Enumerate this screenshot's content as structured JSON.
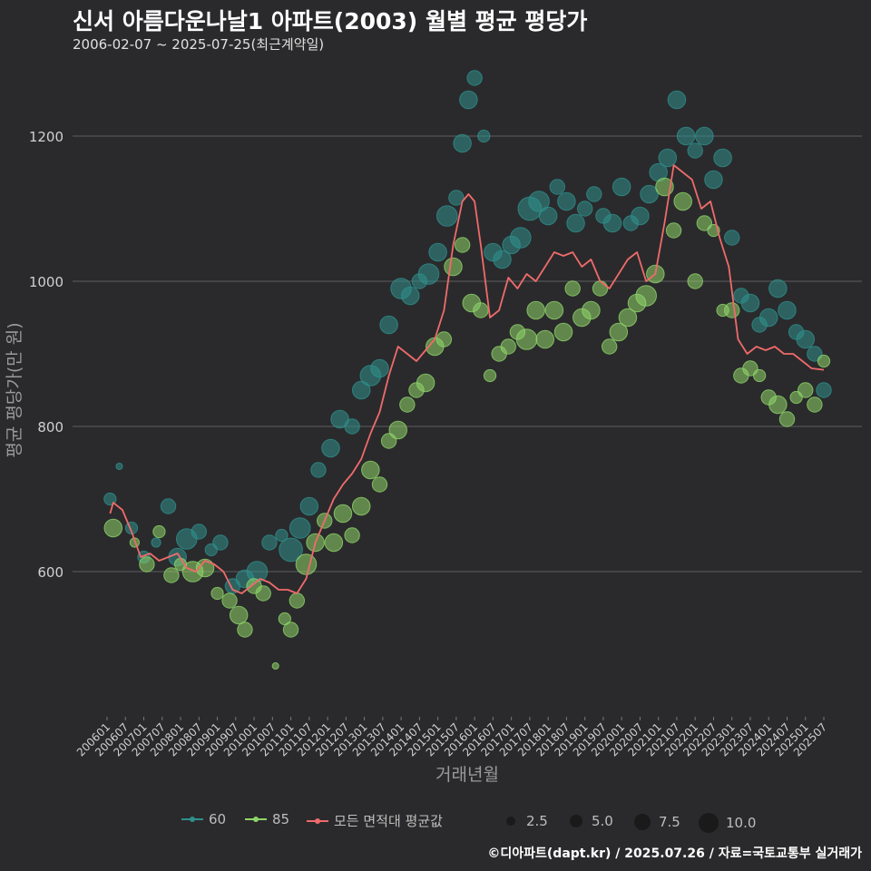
{
  "title": "신서 아름다운나날1 아파트(2003) 월별 평균 평당가",
  "subtitle": "2006-02-07 ~ 2025-07-25(최근계약일)",
  "footer": "©디아파트(dapt.kr) / 2025.07.26 / 자료=국토교통부 실거래가",
  "colors": {
    "bg": "#2a2a2c",
    "grid": "#555555",
    "s60": "#2f8f8c",
    "s85": "#8fd46a",
    "avg": "#ef6b6b",
    "text": "#d0d0d0"
  },
  "legend": {
    "s60": "60",
    "s85": "85",
    "avg": "모든 면적대 평균값",
    "sizes": [
      "2.5",
      "5.0",
      "7.5",
      "10.0"
    ]
  },
  "chart_data": {
    "type": "scatter",
    "xlabel": "거래년월",
    "ylabel": "평균 평당가(만 원)",
    "ylim": [
      400,
      1300
    ],
    "yticks": [
      600,
      800,
      1000,
      1200
    ],
    "xticks": [
      "200601",
      "200607",
      "200701",
      "200707",
      "200801",
      "200807",
      "200901",
      "200907",
      "201001",
      "201007",
      "201101",
      "201107",
      "201201",
      "201207",
      "201301",
      "201307",
      "201401",
      "201407",
      "201501",
      "201507",
      "201601",
      "201607",
      "201701",
      "201707",
      "201801",
      "201807",
      "201901",
      "201907",
      "202001",
      "202007",
      "202101",
      "202107",
      "202201",
      "202207",
      "202301",
      "202307",
      "202401",
      "202407",
      "202501",
      "202507"
    ],
    "x_range": [
      "2006-01",
      "2025-07"
    ],
    "series": [
      {
        "name": "60",
        "points": [
          [
            "2006-02",
            700,
            3
          ],
          [
            "2006-05",
            745,
            1
          ],
          [
            "2006-09",
            660,
            3
          ],
          [
            "2007-01",
            620,
            3
          ],
          [
            "2007-05",
            640,
            2
          ],
          [
            "2007-09",
            690,
            4
          ],
          [
            "2007-12",
            620,
            5
          ],
          [
            "2008-03",
            645,
            6
          ],
          [
            "2008-07",
            655,
            4
          ],
          [
            "2008-11",
            630,
            3
          ],
          [
            "2009-02",
            640,
            4
          ],
          [
            "2009-06",
            580,
            4
          ],
          [
            "2009-10",
            590,
            5
          ],
          [
            "2010-02",
            600,
            6
          ],
          [
            "2010-06",
            640,
            4
          ],
          [
            "2010-10",
            650,
            3
          ],
          [
            "2011-01",
            630,
            7
          ],
          [
            "2011-04",
            660,
            6
          ],
          [
            "2011-07",
            690,
            5
          ],
          [
            "2011-10",
            740,
            4
          ],
          [
            "2012-02",
            770,
            5
          ],
          [
            "2012-05",
            810,
            5
          ],
          [
            "2012-09",
            800,
            4
          ],
          [
            "2012-12",
            850,
            5
          ],
          [
            "2013-03",
            870,
            6
          ],
          [
            "2013-06",
            880,
            5
          ],
          [
            "2013-09",
            940,
            5
          ],
          [
            "2014-01",
            990,
            6
          ],
          [
            "2014-04",
            980,
            5
          ],
          [
            "2014-07",
            1000,
            4
          ],
          [
            "2014-10",
            1010,
            6
          ],
          [
            "2015-01",
            1040,
            5
          ],
          [
            "2015-04",
            1090,
            6
          ],
          [
            "2015-07",
            1115,
            4
          ],
          [
            "2015-09",
            1190,
            5
          ],
          [
            "2015-11",
            1250,
            5
          ],
          [
            "2016-01",
            1280,
            4
          ],
          [
            "2016-04",
            1200,
            3
          ],
          [
            "2016-07",
            1040,
            5
          ],
          [
            "2016-10",
            1030,
            5
          ],
          [
            "2017-01",
            1050,
            5
          ],
          [
            "2017-04",
            1060,
            6
          ],
          [
            "2017-07",
            1100,
            7
          ],
          [
            "2017-10",
            1110,
            6
          ],
          [
            "2018-01",
            1090,
            5
          ],
          [
            "2018-04",
            1130,
            4
          ],
          [
            "2018-07",
            1110,
            5
          ],
          [
            "2018-10",
            1080,
            5
          ],
          [
            "2019-01",
            1100,
            4
          ],
          [
            "2019-04",
            1120,
            4
          ],
          [
            "2019-07",
            1090,
            4
          ],
          [
            "2019-10",
            1080,
            5
          ],
          [
            "2020-01",
            1130,
            5
          ],
          [
            "2020-04",
            1080,
            4
          ],
          [
            "2020-07",
            1090,
            5
          ],
          [
            "2020-10",
            1120,
            5
          ],
          [
            "2021-01",
            1150,
            5
          ],
          [
            "2021-04",
            1170,
            5
          ],
          [
            "2021-07",
            1250,
            5
          ],
          [
            "2021-10",
            1200,
            5
          ],
          [
            "2022-01",
            1180,
            4
          ],
          [
            "2022-04",
            1200,
            5
          ],
          [
            "2022-07",
            1140,
            5
          ],
          [
            "2022-10",
            1170,
            5
          ],
          [
            "2023-01",
            1060,
            4
          ],
          [
            "2023-04",
            980,
            4
          ],
          [
            "2023-07",
            970,
            5
          ],
          [
            "2023-10",
            940,
            4
          ],
          [
            "2024-01",
            950,
            5
          ],
          [
            "2024-04",
            990,
            5
          ],
          [
            "2024-07",
            960,
            5
          ],
          [
            "2024-10",
            930,
            4
          ],
          [
            "2025-01",
            920,
            5
          ],
          [
            "2025-04",
            900,
            4
          ],
          [
            "2025-07",
            850,
            4
          ]
        ]
      },
      {
        "name": "85",
        "points": [
          [
            "2006-03",
            660,
            5
          ],
          [
            "2006-10",
            640,
            2
          ],
          [
            "2007-02",
            610,
            4
          ],
          [
            "2007-06",
            655,
            3
          ],
          [
            "2007-10",
            595,
            4
          ],
          [
            "2008-01",
            610,
            3
          ],
          [
            "2008-05",
            600,
            6
          ],
          [
            "2008-09",
            605,
            5
          ],
          [
            "2009-01",
            570,
            3
          ],
          [
            "2009-05",
            560,
            4
          ],
          [
            "2009-08",
            540,
            5
          ],
          [
            "2009-10",
            520,
            4
          ],
          [
            "2010-01",
            580,
            4
          ],
          [
            "2010-04",
            570,
            4
          ],
          [
            "2010-08",
            470,
            1
          ],
          [
            "2010-11",
            535,
            3
          ],
          [
            "2011-01",
            520,
            4
          ],
          [
            "2011-03",
            560,
            4
          ],
          [
            "2011-06",
            610,
            6
          ],
          [
            "2011-09",
            640,
            5
          ],
          [
            "2011-12",
            670,
            4
          ],
          [
            "2012-03",
            640,
            5
          ],
          [
            "2012-06",
            680,
            5
          ],
          [
            "2012-09",
            650,
            4
          ],
          [
            "2012-12",
            690,
            5
          ],
          [
            "2013-03",
            740,
            5
          ],
          [
            "2013-06",
            720,
            4
          ],
          [
            "2013-09",
            780,
            4
          ],
          [
            "2013-12",
            795,
            5
          ],
          [
            "2014-03",
            830,
            4
          ],
          [
            "2014-06",
            850,
            4
          ],
          [
            "2014-09",
            860,
            5
          ],
          [
            "2014-12",
            910,
            5
          ],
          [
            "2015-03",
            920,
            4
          ],
          [
            "2015-06",
            1020,
            5
          ],
          [
            "2015-09",
            1050,
            4
          ],
          [
            "2015-12",
            970,
            5
          ],
          [
            "2016-03",
            960,
            4
          ],
          [
            "2016-06",
            870,
            3
          ],
          [
            "2016-09",
            900,
            4
          ],
          [
            "2016-12",
            910,
            4
          ],
          [
            "2017-03",
            930,
            4
          ],
          [
            "2017-06",
            920,
            6
          ],
          [
            "2017-09",
            960,
            5
          ],
          [
            "2017-12",
            920,
            5
          ],
          [
            "2018-03",
            960,
            5
          ],
          [
            "2018-06",
            930,
            5
          ],
          [
            "2018-09",
            990,
            4
          ],
          [
            "2018-12",
            950,
            5
          ],
          [
            "2019-03",
            960,
            5
          ],
          [
            "2019-06",
            990,
            4
          ],
          [
            "2019-09",
            910,
            4
          ],
          [
            "2019-12",
            930,
            5
          ],
          [
            "2020-03",
            950,
            5
          ],
          [
            "2020-06",
            970,
            5
          ],
          [
            "2020-09",
            980,
            6
          ],
          [
            "2020-12",
            1010,
            5
          ],
          [
            "2021-03",
            1130,
            5
          ],
          [
            "2021-06",
            1070,
            4
          ],
          [
            "2021-09",
            1110,
            5
          ],
          [
            "2022-01",
            1000,
            4
          ],
          [
            "2022-04",
            1080,
            4
          ],
          [
            "2022-07",
            1070,
            3
          ],
          [
            "2022-10",
            960,
            3
          ],
          [
            "2023-01",
            960,
            4
          ],
          [
            "2023-04",
            870,
            4
          ],
          [
            "2023-07",
            880,
            4
          ],
          [
            "2023-10",
            870,
            3
          ],
          [
            "2024-01",
            840,
            4
          ],
          [
            "2024-04",
            830,
            5
          ],
          [
            "2024-07",
            810,
            4
          ],
          [
            "2024-10",
            840,
            3
          ],
          [
            "2025-01",
            850,
            4
          ],
          [
            "2025-04",
            830,
            4
          ],
          [
            "2025-07",
            890,
            3
          ]
        ]
      },
      {
        "name": "모든 면적대 평균값",
        "points": [
          [
            "2006-02",
            680
          ],
          [
            "2006-03",
            695
          ],
          [
            "2006-06",
            685
          ],
          [
            "2006-09",
            655
          ],
          [
            "2006-12",
            620
          ],
          [
            "2007-03",
            625
          ],
          [
            "2007-06",
            615
          ],
          [
            "2007-09",
            620
          ],
          [
            "2007-12",
            625
          ],
          [
            "2008-03",
            605
          ],
          [
            "2008-06",
            600
          ],
          [
            "2008-09",
            615
          ],
          [
            "2008-12",
            610
          ],
          [
            "2009-03",
            600
          ],
          [
            "2009-06",
            575
          ],
          [
            "2009-09",
            570
          ],
          [
            "2009-12",
            580
          ],
          [
            "2010-03",
            590
          ],
          [
            "2010-06",
            585
          ],
          [
            "2010-09",
            575
          ],
          [
            "2010-12",
            575
          ],
          [
            "2011-03",
            570
          ],
          [
            "2011-06",
            590
          ],
          [
            "2011-09",
            640
          ],
          [
            "2011-12",
            670
          ],
          [
            "2012-03",
            700
          ],
          [
            "2012-06",
            720
          ],
          [
            "2012-09",
            735
          ],
          [
            "2012-12",
            755
          ],
          [
            "2013-03",
            790
          ],
          [
            "2013-06",
            820
          ],
          [
            "2013-09",
            870
          ],
          [
            "2013-12",
            910
          ],
          [
            "2014-03",
            900
          ],
          [
            "2014-06",
            890
          ],
          [
            "2014-09",
            905
          ],
          [
            "2014-12",
            920
          ],
          [
            "2015-03",
            960
          ],
          [
            "2015-06",
            1050
          ],
          [
            "2015-09",
            1110
          ],
          [
            "2015-11",
            1120
          ],
          [
            "2016-01",
            1110
          ],
          [
            "2016-03",
            1050
          ],
          [
            "2016-06",
            950
          ],
          [
            "2016-09",
            960
          ],
          [
            "2016-12",
            1005
          ],
          [
            "2017-03",
            990
          ],
          [
            "2017-06",
            1010
          ],
          [
            "2017-09",
            1000
          ],
          [
            "2017-12",
            1020
          ],
          [
            "2018-03",
            1040
          ],
          [
            "2018-06",
            1035
          ],
          [
            "2018-09",
            1040
          ],
          [
            "2018-12",
            1020
          ],
          [
            "2019-03",
            1030
          ],
          [
            "2019-06",
            1000
          ],
          [
            "2019-09",
            990
          ],
          [
            "2019-12",
            1010
          ],
          [
            "2020-03",
            1030
          ],
          [
            "2020-06",
            1040
          ],
          [
            "2020-09",
            1000
          ],
          [
            "2020-12",
            1010
          ],
          [
            "2021-03",
            1080
          ],
          [
            "2021-06",
            1160
          ],
          [
            "2021-09",
            1150
          ],
          [
            "2021-12",
            1140
          ],
          [
            "2022-03",
            1100
          ],
          [
            "2022-06",
            1110
          ],
          [
            "2022-09",
            1060
          ],
          [
            "2022-12",
            1020
          ],
          [
            "2023-03",
            920
          ],
          [
            "2023-06",
            900
          ],
          [
            "2023-09",
            910
          ],
          [
            "2023-12",
            905
          ],
          [
            "2024-03",
            910
          ],
          [
            "2024-06",
            900
          ],
          [
            "2024-09",
            900
          ],
          [
            "2024-12",
            890
          ],
          [
            "2025-03",
            880
          ],
          [
            "2025-07",
            878
          ]
        ]
      }
    ]
  }
}
